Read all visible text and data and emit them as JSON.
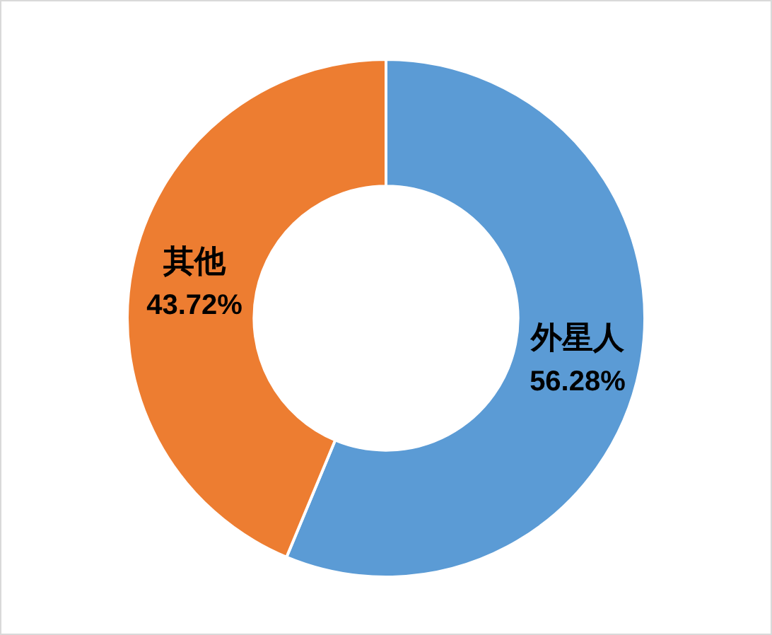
{
  "chart_data": {
    "type": "donut",
    "categories": [
      "外星人",
      "其他"
    ],
    "values": [
      56.28,
      43.72
    ],
    "colors": [
      "#5b9bd5",
      "#ed7d31"
    ],
    "value_labels": [
      "56.28%",
      "43.72%"
    ],
    "legend": false
  }
}
